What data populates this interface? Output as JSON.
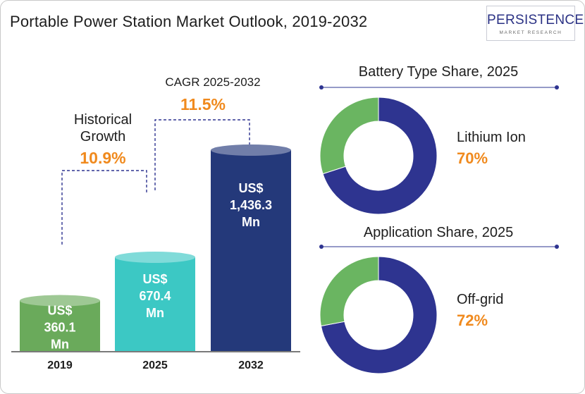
{
  "title": "Portable Power Station Market Outlook, 2019-2032",
  "logo": {
    "main": "PERSISTENCE",
    "sub": "MARKET RESEARCH"
  },
  "colors": {
    "bar_2019": "#6aaa5b",
    "bar_2025": "#3cc8c4",
    "bar_2032": "#24397a",
    "donut_primary": "#2e3490",
    "donut_secondary": "#6ab561",
    "accent_orange": "#f08a1e",
    "text_dark": "#1d1d1d",
    "connector": "#2e3490"
  },
  "growth": {
    "historical": {
      "label_line1": "Historical",
      "label_line2": "Growth",
      "value": "10.9%"
    },
    "cagr": {
      "label": "CAGR 2025-2032",
      "value": "11.5%"
    }
  },
  "chart_data": [
    {
      "type": "bar",
      "categories": [
        "2019",
        "2025",
        "2032"
      ],
      "values": [
        360.1,
        670.4,
        1436.3
      ],
      "value_labels": [
        [
          "US$",
          "360.1",
          "Mn"
        ],
        [
          "US$",
          "670.4",
          "Mn"
        ],
        [
          "US$",
          "1,436.3",
          "Mn"
        ]
      ]
    },
    {
      "type": "pie",
      "title": "Battery Type Share, 2025",
      "highlight_label": "Lithium Ion",
      "highlight_value": "70%",
      "values": [
        70,
        30
      ]
    },
    {
      "type": "pie",
      "title": "Application Share, 2025",
      "highlight_label": "Off-grid",
      "highlight_value": "72%",
      "values": [
        72,
        28
      ]
    }
  ]
}
